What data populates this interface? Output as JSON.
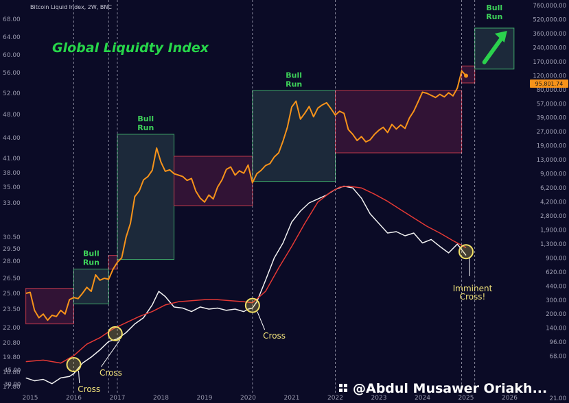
{
  "header": {
    "symbol_text": "Bitcoin Liquid Index, 2W, BNC",
    "title": "Global Liquidty Index"
  },
  "chart_data": {
    "type": "line",
    "title": "Global Liquidty Index",
    "x_axis": {
      "years": [
        "2015",
        "2016",
        "2017",
        "2018",
        "2019",
        "2020",
        "2021",
        "2022",
        "2023",
        "2024",
        "2025",
        "2026"
      ],
      "range": [
        2014.9,
        2026.2
      ]
    },
    "left_axis": {
      "ticks": [
        "68.00",
        "64.00",
        "60.00",
        "56.00",
        "52.00",
        "48.00",
        "44.00",
        "41.00",
        "38.00",
        "35.00",
        "33.00",
        "30.50",
        "29.50",
        "28.00",
        "26.50",
        "25.00",
        "23.50",
        "22.00",
        "20.80",
        "19.80",
        "18.80",
        "17.80"
      ]
    },
    "right_axis": {
      "ticks": [
        "760,000.00",
        "520,000.00",
        "360,000.00",
        "240,000.00",
        "170,000.00",
        "120,000.00",
        "80,000.00",
        "57,000.00",
        "39,000.00",
        "27,000.00",
        "19,000.00",
        "13,000.00",
        "9,000.00",
        "6,200.00",
        "4,200.00",
        "2,800.00",
        "1,900.00",
        "1,300.00",
        "900.00",
        "620.00",
        "440.00",
        "300.00",
        "200.00",
        "140.00",
        "96.00",
        "68.00",
        "45.00",
        "30.00",
        "21.00"
      ],
      "ticks_left_edge": [
        "68.00",
        "45.00",
        "30.00"
      ],
      "last_price_label": "95,801.74"
    },
    "series": [
      {
        "color": "#f7931a",
        "points": [
          [
            2014.9,
            25
          ],
          [
            2015.0,
            25.1
          ],
          [
            2015.1,
            23.4
          ],
          [
            2015.2,
            22.8
          ],
          [
            2015.3,
            23.1
          ],
          [
            2015.4,
            22.6
          ],
          [
            2015.5,
            23
          ],
          [
            2015.6,
            22.9
          ],
          [
            2015.7,
            23.4
          ],
          [
            2015.8,
            23.1
          ],
          [
            2015.9,
            24.4
          ],
          [
            2016.0,
            24.6
          ],
          [
            2016.1,
            24.5
          ],
          [
            2016.2,
            25
          ],
          [
            2016.3,
            25.6
          ],
          [
            2016.4,
            25.2
          ],
          [
            2016.5,
            26.8
          ],
          [
            2016.6,
            26.3
          ],
          [
            2016.7,
            26.5
          ],
          [
            2016.8,
            26.4
          ],
          [
            2016.9,
            27.3
          ],
          [
            2017.0,
            27.9
          ],
          [
            2017.1,
            28.4
          ],
          [
            2017.2,
            30.5
          ],
          [
            2017.3,
            31.5
          ],
          [
            2017.4,
            33.8
          ],
          [
            2017.5,
            34.5
          ],
          [
            2017.6,
            36.5
          ],
          [
            2017.7,
            37.2
          ],
          [
            2017.8,
            38.5
          ],
          [
            2017.9,
            42.5
          ],
          [
            2018.0,
            40.2
          ],
          [
            2018.1,
            38.3
          ],
          [
            2018.2,
            38.6
          ],
          [
            2018.3,
            37.8
          ],
          [
            2018.4,
            37.5
          ],
          [
            2018.5,
            37.2
          ],
          [
            2018.6,
            36.4
          ],
          [
            2018.7,
            36.8
          ],
          [
            2018.8,
            34.5
          ],
          [
            2018.9,
            33.6
          ],
          [
            2019.0,
            33.1
          ],
          [
            2019.1,
            34
          ],
          [
            2019.2,
            33.5
          ],
          [
            2019.3,
            35
          ],
          [
            2019.4,
            36.5
          ],
          [
            2019.5,
            38.7
          ],
          [
            2019.6,
            39.2
          ],
          [
            2019.7,
            37.5
          ],
          [
            2019.8,
            38.4
          ],
          [
            2019.9,
            37.9
          ],
          [
            2020.0,
            39.6
          ],
          [
            2020.1,
            35.9
          ],
          [
            2020.2,
            37.8
          ],
          [
            2020.3,
            38.5
          ],
          [
            2020.4,
            39.5
          ],
          [
            2020.5,
            39.9
          ],
          [
            2020.6,
            41.2
          ],
          [
            2020.7,
            41.8
          ],
          [
            2020.8,
            43.5
          ],
          [
            2020.9,
            45.8
          ],
          [
            2021.0,
            49.4
          ],
          [
            2021.1,
            50.5
          ],
          [
            2021.2,
            47.2
          ],
          [
            2021.3,
            48.2
          ],
          [
            2021.4,
            49.5
          ],
          [
            2021.5,
            47.6
          ],
          [
            2021.6,
            49.2
          ],
          [
            2021.7,
            49.8
          ],
          [
            2021.8,
            50.2
          ],
          [
            2021.9,
            49.1
          ],
          [
            2022.0,
            47.9
          ],
          [
            2022.1,
            48.6
          ],
          [
            2022.2,
            48.2
          ],
          [
            2022.3,
            45.4
          ],
          [
            2022.4,
            44.6
          ],
          [
            2022.5,
            43.6
          ],
          [
            2022.6,
            44.2
          ],
          [
            2022.7,
            43.4
          ],
          [
            2022.8,
            43.7
          ],
          [
            2022.9,
            44.6
          ],
          [
            2023.0,
            45.3
          ],
          [
            2023.1,
            45.8
          ],
          [
            2023.2,
            44.9
          ],
          [
            2023.3,
            46.3
          ],
          [
            2023.4,
            45.5
          ],
          [
            2023.5,
            46.2
          ],
          [
            2023.6,
            45.6
          ],
          [
            2023.7,
            47.4
          ],
          [
            2023.8,
            48.6
          ],
          [
            2023.9,
            50.4
          ],
          [
            2024.0,
            52.2
          ],
          [
            2024.1,
            52
          ],
          [
            2024.2,
            51.6
          ],
          [
            2024.3,
            51.2
          ],
          [
            2024.4,
            51.8
          ],
          [
            2024.5,
            51.3
          ],
          [
            2024.6,
            52.1
          ],
          [
            2024.7,
            51.5
          ],
          [
            2024.8,
            53
          ],
          [
            2024.9,
            56.4
          ],
          [
            2025.0,
            55.4
          ]
        ]
      },
      {
        "color": "#f2f2f2",
        "points": [
          [
            2014.9,
            18.4
          ],
          [
            2015.1,
            18.2
          ],
          [
            2015.3,
            18.3
          ],
          [
            2015.5,
            18
          ],
          [
            2015.7,
            18.4
          ],
          [
            2015.9,
            18.5
          ],
          [
            2016.0,
            18.7
          ],
          [
            2016.2,
            19.4
          ],
          [
            2016.4,
            19.8
          ],
          [
            2016.6,
            20.3
          ],
          [
            2016.8,
            20.9
          ],
          [
            2017.0,
            21.1
          ],
          [
            2017.2,
            21.6
          ],
          [
            2017.4,
            22.3
          ],
          [
            2017.6,
            22.8
          ],
          [
            2017.8,
            23.9
          ],
          [
            2017.95,
            25.2
          ],
          [
            2018.1,
            24.7
          ],
          [
            2018.3,
            23.7
          ],
          [
            2018.5,
            23.6
          ],
          [
            2018.7,
            23.3
          ],
          [
            2018.9,
            23.7
          ],
          [
            2019.1,
            23.5
          ],
          [
            2019.3,
            23.6
          ],
          [
            2019.5,
            23.4
          ],
          [
            2019.7,
            23.5
          ],
          [
            2019.9,
            23.3
          ],
          [
            2020.0,
            23.5
          ],
          [
            2020.1,
            23.6
          ],
          [
            2020.2,
            24.2
          ],
          [
            2020.4,
            26.3
          ],
          [
            2020.6,
            28.4
          ],
          [
            2020.8,
            30
          ],
          [
            2021.0,
            31.6
          ],
          [
            2021.2,
            32.4
          ],
          [
            2021.4,
            33
          ],
          [
            2021.6,
            33.5
          ],
          [
            2021.8,
            34
          ],
          [
            2022.0,
            34.7
          ],
          [
            2022.2,
            35.2
          ],
          [
            2022.4,
            34.9
          ],
          [
            2022.6,
            33.6
          ],
          [
            2022.8,
            32.2
          ],
          [
            2023.0,
            31.5
          ],
          [
            2023.2,
            30.8
          ],
          [
            2023.4,
            30.9
          ],
          [
            2023.6,
            30.6
          ],
          [
            2023.8,
            30.8
          ],
          [
            2024.0,
            30
          ],
          [
            2024.2,
            30.3
          ],
          [
            2024.4,
            29.7
          ],
          [
            2024.6,
            29
          ],
          [
            2024.8,
            29.9
          ],
          [
            2025.0,
            28.7
          ]
        ]
      },
      {
        "color": "#e53935",
        "points": [
          [
            2014.9,
            19.5
          ],
          [
            2015.3,
            19.6
          ],
          [
            2015.7,
            19.4
          ],
          [
            2016.0,
            19.9
          ],
          [
            2016.3,
            20.7
          ],
          [
            2016.6,
            21.2
          ],
          [
            2016.9,
            21.9
          ],
          [
            2017.2,
            22.4
          ],
          [
            2017.5,
            22.9
          ],
          [
            2017.8,
            23.3
          ],
          [
            2018.1,
            23.9
          ],
          [
            2018.4,
            24.2
          ],
          [
            2018.7,
            24.3
          ],
          [
            2019.0,
            24.4
          ],
          [
            2019.3,
            24.4
          ],
          [
            2019.6,
            24.3
          ],
          [
            2019.9,
            24.2
          ],
          [
            2020.1,
            24.1
          ],
          [
            2020.4,
            25.2
          ],
          [
            2020.7,
            27.4
          ],
          [
            2021.0,
            29.7
          ],
          [
            2021.3,
            31.5
          ],
          [
            2021.6,
            33.1
          ],
          [
            2021.9,
            34.4
          ],
          [
            2022.1,
            35
          ],
          [
            2022.3,
            35.2
          ],
          [
            2022.6,
            34.9
          ],
          [
            2022.9,
            34.1
          ],
          [
            2023.2,
            33.2
          ],
          [
            2023.5,
            32.5
          ],
          [
            2023.8,
            31.9
          ],
          [
            2024.1,
            31.3
          ],
          [
            2024.4,
            30.8
          ],
          [
            2024.7,
            30.2
          ],
          [
            2025.0,
            29.6
          ]
        ]
      }
    ],
    "regions": [
      {
        "type": "bear",
        "x": [
          2014.9,
          2016.0
        ],
        "y": [
          22.3,
          25.5
        ]
      },
      {
        "type": "bull",
        "label": "Bull\nRun",
        "x": [
          2016.0,
          2016.8
        ],
        "y": [
          24,
          27.3
        ]
      },
      {
        "type": "bear",
        "x": [
          2016.8,
          2017.0
        ],
        "y": [
          27.3,
          28.7
        ]
      },
      {
        "type": "bull",
        "label": "Bull\nRun",
        "x": [
          2017.0,
          2018.3
        ],
        "y": [
          28.2,
          44.6
        ]
      },
      {
        "type": "bear",
        "x": [
          2018.3,
          2020.1
        ],
        "y": [
          32.8,
          41.3
        ]
      },
      {
        "type": "bull",
        "label": "Bull\nRun",
        "x": [
          2020.1,
          2022.0
        ],
        "y": [
          36.2,
          52.5
        ]
      },
      {
        "type": "bear",
        "x": [
          2022.0,
          2024.9
        ],
        "y": [
          41.8,
          52.5
        ]
      },
      {
        "type": "bear",
        "x": [
          2024.9,
          2025.2
        ],
        "y": [
          54,
          57.5
        ]
      },
      {
        "type": "bull",
        "label": "Bull\nRun",
        "x": [
          2025.2,
          2026.1
        ],
        "y": [
          56.8,
          66
        ]
      }
    ],
    "crosses": [
      {
        "label": "Cross",
        "x": 2016.0
      },
      {
        "label": "Cross",
        "x": 2016.95
      },
      {
        "label": "Cross",
        "x": 2020.1
      },
      {
        "label": "Imminent\nCross!",
        "x": 2025.0
      }
    ]
  },
  "watermark": {
    "text": "@Abdul Musawer Oriakh..."
  }
}
